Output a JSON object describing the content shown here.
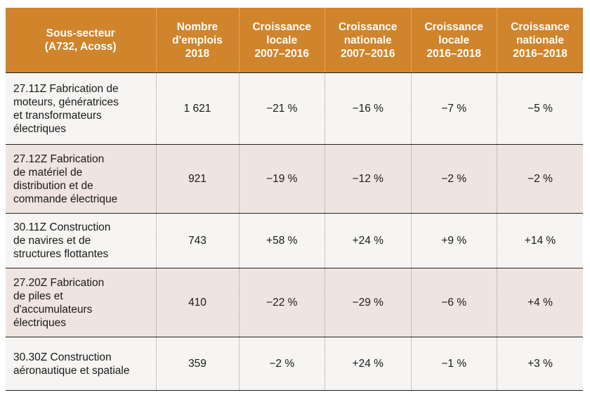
{
  "table": {
    "headers": [
      [
        "Sous-secteur",
        "(A732, Acoss)"
      ],
      [
        "Nombre",
        "d'emplois",
        "2018"
      ],
      [
        "Croissance",
        "locale",
        "2007–2016"
      ],
      [
        "Croissance",
        "nationale",
        "2007–2016"
      ],
      [
        "Croissance",
        "locale",
        "2016–2018"
      ],
      [
        "Croissance",
        "nationale",
        "2016–2018"
      ]
    ],
    "rows": [
      {
        "sector": [
          "27.11Z Fabrication de",
          "moteurs, génératrices",
          "et transformateurs",
          "électriques"
        ],
        "emplois": "1 621",
        "locale_2007_2016": "−21 %",
        "nationale_2007_2016": "−16 %",
        "locale_2016_2018": "−7 %",
        "nationale_2016_2018": "−5 %"
      },
      {
        "sector": [
          "27.12Z Fabrication",
          "de matériel de",
          "distribution et de",
          "commande électrique"
        ],
        "emplois": "921",
        "locale_2007_2016": "−19 %",
        "nationale_2007_2016": "−12 %",
        "locale_2016_2018": "−2 %",
        "nationale_2016_2018": "−2 %"
      },
      {
        "sector": [
          "30.11Z Construction",
          "de navires et de",
          "structures flottantes"
        ],
        "emplois": "743",
        "locale_2007_2016": "+58 %",
        "nationale_2007_2016": "+24 %",
        "locale_2016_2018": "+9 %",
        "nationale_2016_2018": "+14 %"
      },
      {
        "sector": [
          "27.20Z Fabrication",
          "de piles et",
          "d'accumulateurs",
          "électriques"
        ],
        "emplois": "410",
        "locale_2007_2016": "−22 %",
        "nationale_2007_2016": "−29 %",
        "locale_2016_2018": "−6 %",
        "nationale_2016_2018": "+4 %"
      },
      {
        "sector": [
          "30.30Z Construction",
          "aéronautique et spatiale"
        ],
        "emplois": "359",
        "locale_2007_2016": "−2 %",
        "nationale_2007_2016": "+24 %",
        "locale_2016_2018": "−1 %",
        "nationale_2016_2018": "+3 %"
      }
    ]
  },
  "colors": {
    "header_bg": "#d0842b",
    "header_text": "#ffffff",
    "row_light": "#f6f5f3",
    "row_tinted": "#efe4df"
  }
}
